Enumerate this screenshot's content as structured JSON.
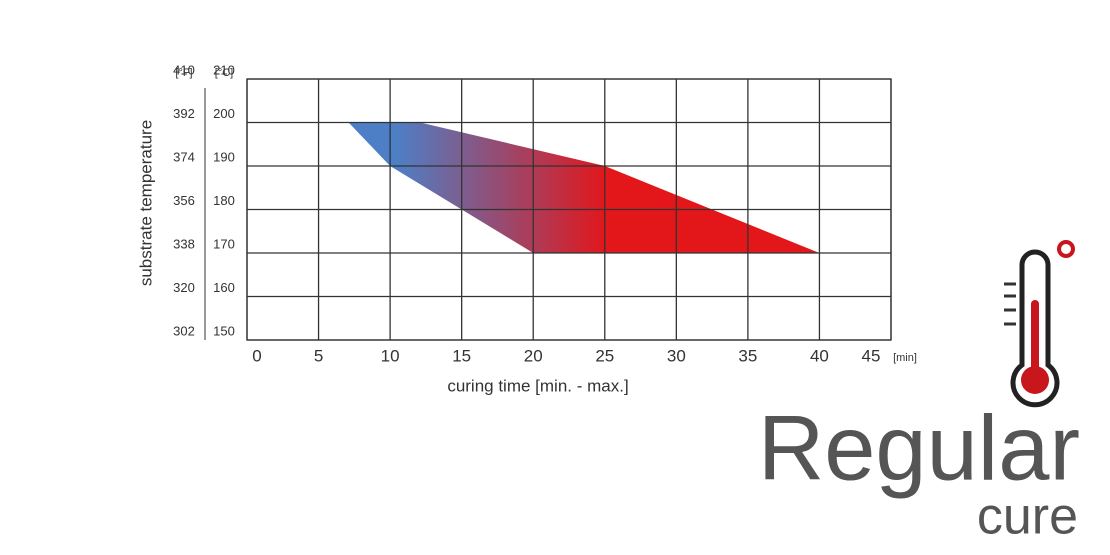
{
  "chart_data": {
    "type": "area",
    "x_label": "curing time [min. - max.]",
    "x_unit": "[min]",
    "y_label": "substrate temperature",
    "y_unit": "[°C]",
    "y2_unit": "[°F]",
    "xlim": [
      0,
      45
    ],
    "xticks": [
      0,
      5,
      10,
      15,
      20,
      25,
      30,
      35,
      40,
      45
    ],
    "ylim": [
      150,
      210
    ],
    "yticks": [
      150,
      160,
      170,
      180,
      190,
      200,
      210
    ],
    "y2lim": [
      302,
      410
    ],
    "y2ticks": [
      302,
      320,
      338,
      356,
      374,
      392,
      410
    ],
    "series": [
      {
        "x": [
          7.1,
          10,
          20
        ],
        "values": [
          200,
          190,
          170
        ]
      },
      {
        "x": [
          12.1,
          25,
          40
        ],
        "values": [
          200,
          190,
          170
        ]
      }
    ],
    "colors": [
      "#4d7fc6",
      "#e3161a"
    ],
    "grid": true
  },
  "branding": {
    "title": "Regular",
    "subtitle": "cure"
  }
}
